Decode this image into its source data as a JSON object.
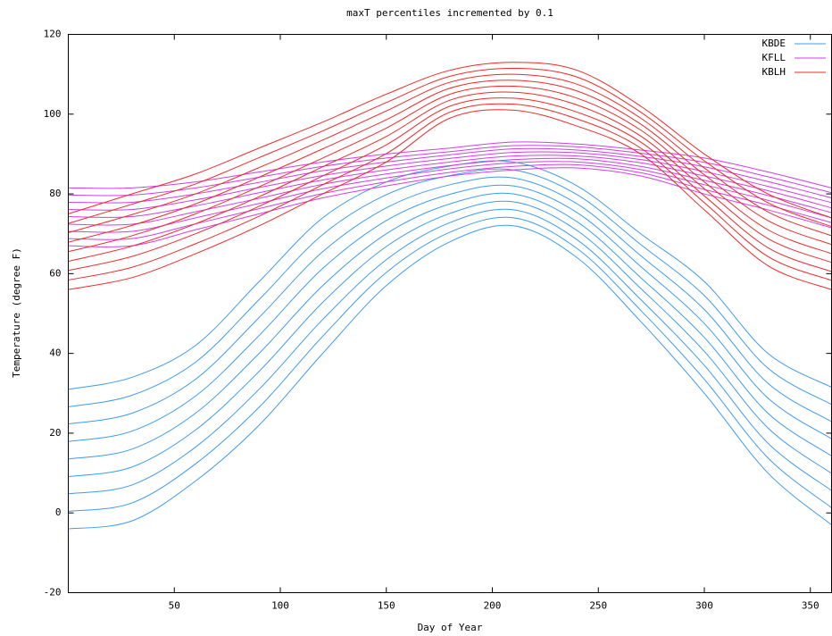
{
  "chart_data": {
    "type": "line",
    "title": "maxT percentiles incremented by 0.1",
    "x_label": "Day of Year",
    "y_label": "Temperature (degree F)",
    "x": [
      0,
      30,
      60,
      90,
      120,
      150,
      180,
      210,
      240,
      270,
      300,
      330,
      360
    ],
    "xlim": [
      0,
      360
    ],
    "xticks": [
      50,
      100,
      150,
      200,
      250,
      300,
      350
    ],
    "ylim": [
      -20,
      120
    ],
    "yticks": [
      -20,
      0,
      20,
      40,
      60,
      80,
      100,
      120
    ],
    "grid": false,
    "legend": "top-right",
    "series": [
      {
        "name": "KBDE",
        "color": "#3d9bf0",
        "values": [
          [
            -4,
            -2,
            8,
            22,
            40,
            57,
            68,
            72,
            64,
            48,
            30,
            10,
            -3
          ],
          [
            0.4,
            2.5,
            12.3,
            26.5,
            44.3,
            60.3,
            70.4,
            74,
            66.3,
            50.8,
            33.5,
            13.8,
            1.3
          ],
          [
            4.8,
            7,
            16.5,
            31,
            48.5,
            63.5,
            72.8,
            76,
            68.5,
            53.5,
            37,
            17.5,
            5.6
          ],
          [
            9.1,
            11.5,
            20.8,
            35.5,
            52.8,
            66.8,
            75.1,
            78,
            70.8,
            56.3,
            40.5,
            21.3,
            9.9
          ],
          [
            13.5,
            16,
            25,
            40,
            57,
            70,
            77.5,
            80,
            73,
            59,
            44,
            25,
            14.3
          ],
          [
            17.9,
            20.5,
            29.3,
            44.5,
            61.3,
            73.3,
            79.9,
            82,
            75.3,
            61.8,
            47.5,
            28.8,
            18.6
          ],
          [
            22.3,
            25,
            33.5,
            49,
            65.5,
            76.5,
            82.3,
            84,
            77.5,
            64.5,
            51,
            32.5,
            22.9
          ],
          [
            26.6,
            29.5,
            37.8,
            53.5,
            69.8,
            79.8,
            84.6,
            86,
            79.8,
            67.3,
            54.5,
            36.3,
            27.2
          ],
          [
            31,
            34,
            42,
            58,
            74,
            83,
            87,
            88,
            82,
            70,
            58,
            40,
            31.5
          ]
        ]
      },
      {
        "name": "KFLL",
        "color": "#d03ee8",
        "values": [
          [
            67,
            67,
            71,
            75,
            79,
            82,
            84.5,
            86,
            86.5,
            84.5,
            80,
            76,
            71.5
          ],
          [
            68.8,
            68.8,
            72.5,
            76.3,
            80.1,
            83,
            85.4,
            86.9,
            87.3,
            85.3,
            81.1,
            77.2,
            72.8
          ],
          [
            70.6,
            70.6,
            74,
            77.6,
            81.3,
            84,
            86.3,
            87.8,
            88,
            86.1,
            82.3,
            78.4,
            74
          ],
          [
            72.4,
            72.4,
            75.5,
            78.9,
            82.4,
            85,
            87.1,
            88.6,
            88.8,
            86.9,
            83.4,
            79.6,
            75.3
          ],
          [
            74.3,
            74.3,
            77,
            80.3,
            83.5,
            86,
            88,
            89.5,
            89.5,
            87.8,
            84.5,
            80.8,
            76.5
          ],
          [
            76.1,
            76.1,
            78.5,
            81.6,
            84.6,
            87,
            88.9,
            90.4,
            90.3,
            88.6,
            85.6,
            81.9,
            77.8
          ],
          [
            77.9,
            77.9,
            80,
            82.9,
            85.8,
            88,
            89.8,
            91.3,
            91,
            89.4,
            86.8,
            83.1,
            79
          ],
          [
            79.7,
            79.7,
            81.5,
            84.2,
            86.9,
            89,
            90.6,
            92.1,
            91.8,
            90.2,
            87.9,
            84.3,
            80.3
          ],
          [
            81.5,
            81.5,
            83,
            85.5,
            88,
            90,
            91.5,
            93,
            92.5,
            91,
            89,
            85.5,
            81.5
          ]
        ]
      },
      {
        "name": "KBLH",
        "color": "#f02828",
        "values": [
          [
            56,
            59,
            65,
            72,
            80,
            88,
            99,
            101,
            97,
            90,
            76,
            62,
            56
          ],
          [
            58.4,
            61.6,
            67.5,
            74.4,
            82.3,
            90.1,
            100.5,
            102.5,
            98.8,
            91.5,
            77.8,
            64.3,
            58.3
          ],
          [
            60.8,
            64.3,
            70,
            76.9,
            84.5,
            92.3,
            102,
            104,
            100.5,
            93,
            79.5,
            66.5,
            60.5
          ],
          [
            63.1,
            66.9,
            72.5,
            79.3,
            86.8,
            94.4,
            103.5,
            105.5,
            102.3,
            94.5,
            81.3,
            68.8,
            62.8
          ],
          [
            65.5,
            69.5,
            75,
            81.8,
            89,
            96.5,
            105,
            107,
            104,
            96,
            83,
            71,
            65
          ],
          [
            67.9,
            72.1,
            77.5,
            84.2,
            91.3,
            98.6,
            106.5,
            108.5,
            105.8,
            97.5,
            84.8,
            73.3,
            67.3
          ],
          [
            70.3,
            74.8,
            80,
            86.6,
            93.5,
            100.8,
            108,
            110,
            107.5,
            99,
            86.5,
            75.5,
            69.5
          ],
          [
            72.6,
            77.4,
            82.5,
            89.1,
            95.8,
            102.9,
            109.5,
            111.5,
            109.3,
            100.5,
            88.3,
            77.8,
            71.8
          ],
          [
            75,
            80,
            85,
            91.5,
            98,
            105,
            111,
            113,
            111,
            102,
            90,
            80,
            74
          ]
        ]
      }
    ]
  }
}
